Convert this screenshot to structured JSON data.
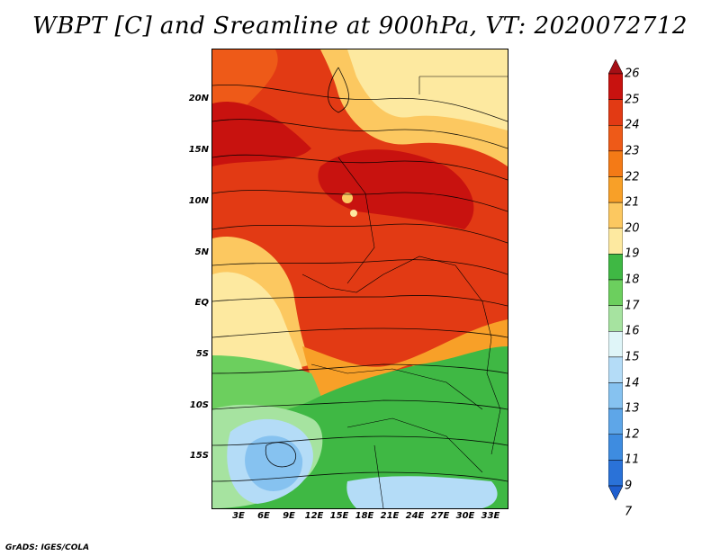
{
  "title": "WBPT [C] and Sreamline at 900hPa, VT: 2020072712",
  "footer": "GrADS: IGES/COLA",
  "map": {
    "lat_labels": [
      "20N",
      "15N",
      "10N",
      "5N",
      "EQ",
      "5S",
      "10S",
      "15S"
    ],
    "lon_labels": [
      "3E",
      "6E",
      "9E",
      "12E",
      "15E",
      "18E",
      "21E",
      "24E",
      "27E",
      "30E",
      "33E"
    ]
  },
  "colorbar": {
    "labels": [
      "26",
      "25",
      "24",
      "23",
      "22",
      "21",
      "20",
      "19",
      "18",
      "17",
      "16",
      "15",
      "14",
      "13",
      "12",
      "11",
      "9",
      "7"
    ],
    "colors": [
      "#a50f15",
      "#c8120f",
      "#e23a14",
      "#ee5a18",
      "#f47a16",
      "#f8a028",
      "#fcc860",
      "#fde9a0",
      "#3fb844",
      "#6ccf5e",
      "#a6e3a0",
      "#dff5f8",
      "#b4dcf7",
      "#86c2f0",
      "#5ea6e8",
      "#3e8ce0",
      "#2a72d8",
      "#1f5fcf"
    ]
  }
}
